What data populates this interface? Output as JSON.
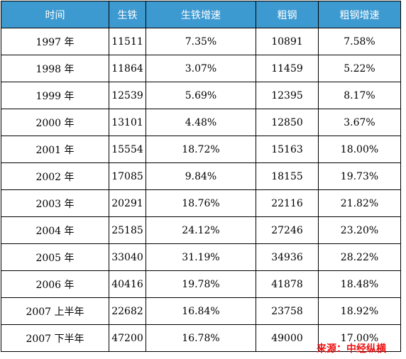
{
  "table": {
    "headers": [
      "时间",
      "生铁",
      "生铁增速",
      "粗钢",
      "粗钢增速"
    ],
    "rows": [
      [
        "1997 年",
        "11511",
        "7.35%",
        "10891",
        "7.58%"
      ],
      [
        "1998 年",
        "11864",
        "3.07%",
        "11459",
        "5.22%"
      ],
      [
        "1999 年",
        "12539",
        "5.69%",
        "12395",
        "8.17%"
      ],
      [
        "2000 年",
        "13101",
        "4.48%",
        "12850",
        "3.67%"
      ],
      [
        "2001 年",
        "15554",
        "18.72%",
        "15163",
        "18.00%"
      ],
      [
        "2002 年",
        "17085",
        "9.84%",
        "18155",
        "19.73%"
      ],
      [
        "2003 年",
        "20291",
        "18.76%",
        "22116",
        "21.82%"
      ],
      [
        "2004 年",
        "25185",
        "24.12%",
        "27246",
        "23.20%"
      ],
      [
        "2005 年",
        "33040",
        "31.19%",
        "34936",
        "28.22%"
      ],
      [
        "2006 年",
        "40416",
        "19.78%",
        "41878",
        "18.48%"
      ],
      [
        "2007 上半年",
        "22682",
        "16.84%",
        "23758",
        "18.92%"
      ],
      [
        "2007 下半年",
        "47200",
        "16.78%",
        "49000",
        "17.00%"
      ]
    ]
  },
  "source": "来源：中经纵横",
  "colors": {
    "header_bg": "#3d9ad1",
    "header_text": "#ffffff",
    "source_text": "#ee1111"
  }
}
